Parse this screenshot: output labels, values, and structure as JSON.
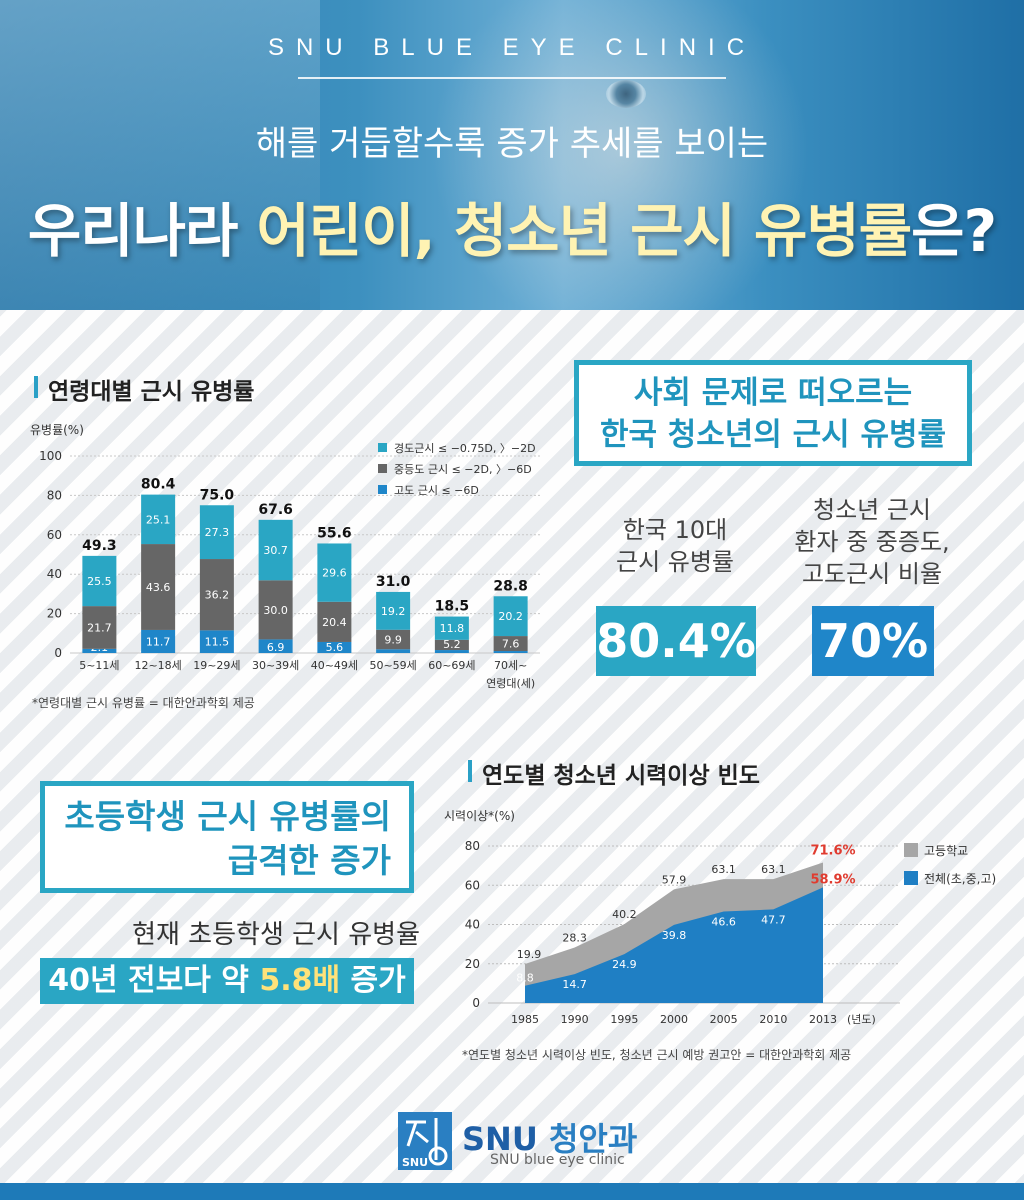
{
  "header": {
    "brand": "SNU BLUE EYE CLINIC",
    "subtitle": "해를 거듭할수록 증가 추세를 보이는",
    "title_part1": "우리나라 ",
    "title_highlight": "어린이, 청소년 근시 유병률",
    "title_part2": "은?"
  },
  "section1": {
    "heading": "연령대별 근시 유병률",
    "note": "*연령대별 근시 유병률 = 대한안과학회 제공"
  },
  "callout1": {
    "line1": "사회 문제로 떠오르는",
    "line2": "한국 청소년의 근시 유병률"
  },
  "stats": {
    "left_label_1": "한국 10대",
    "left_label_2": "근시 유병률",
    "left_value": "80.4%",
    "right_label_1": "청소년 근시",
    "right_label_2": "환자 중 중증도,",
    "right_label_3": "고도근시 비율",
    "right_value": "70%"
  },
  "section2": {
    "heading": "연도별 청소년 시력이상 빈도",
    "note": "*연도별 청소년 시력이상 빈도, 청소년 근시 예방 권고안 = 대한안과학회 제공"
  },
  "callout2": {
    "line1": "초등학생 근시 유병률의",
    "line2": "급격한 증가"
  },
  "growth": {
    "label": "현재 초등학생 근시 유병율",
    "banner_part1": "40년 전보다 약 ",
    "banner_highlight": "5.8배",
    "banner_part2": " 증가"
  },
  "logo": {
    "name_en": "SNU ",
    "name_kr": "청안과",
    "sub": "SNU blue eye clinic",
    "mark_text": "SNU"
  },
  "colors": {
    "teal": "#2aa6c4",
    "gray": "#666666",
    "blue": "#1f7fc4",
    "accent_red": "#e03b2f",
    "highlight_yellow": "#fff3b3"
  },
  "chart_data": [
    {
      "type": "bar",
      "stacked": true,
      "ylabel": "유병률(%)",
      "ylim": [
        0,
        100
      ],
      "yticks": [
        0,
        20,
        40,
        60,
        80,
        100
      ],
      "grid": true,
      "legend": "top-right",
      "categories": [
        "5~11세",
        "12~18세",
        "19~29세",
        "30~39세",
        "40~49세",
        "50~59세",
        "60~69세",
        "70세~"
      ],
      "xlabel_suffix": "연령대(세)",
      "totals": [
        "49.3",
        "80.4",
        "75.0",
        "67.6",
        "55.6",
        "31.0",
        "18.5",
        "28.8"
      ],
      "series": [
        {
          "name": "고도 근시 ≤ −6D",
          "color": "#1f86c9",
          "values": [
            2.1,
            11.7,
            11.5,
            6.9,
            5.6,
            1.9,
            1.5,
            1.0
          ],
          "labels": [
            "2.1",
            "11.7",
            "11.5",
            "6.9",
            "5.6",
            "",
            "",
            ""
          ]
        },
        {
          "name": "중등도 근시 ≤ −2D, 〉−6D",
          "color": "#666666",
          "values": [
            21.7,
            43.6,
            36.2,
            30.0,
            20.4,
            9.9,
            5.2,
            7.6
          ],
          "labels": [
            "21.7",
            "43.6",
            "36.2",
            "30.0",
            "20.4",
            "9.9",
            "5.2",
            "7.6"
          ]
        },
        {
          "name": "경도근시 ≤ −0.75D, 〉−2D",
          "color": "#2aa6c4",
          "values": [
            25.5,
            25.1,
            27.3,
            30.7,
            29.6,
            19.2,
            11.8,
            20.2
          ],
          "labels": [
            "25.5",
            "25.1",
            "27.3",
            "30.7",
            "29.6",
            "19.2",
            "11.8",
            "20.2"
          ]
        }
      ]
    },
    {
      "type": "area",
      "ylabel": "시력이상*(%)",
      "xlabel": "(년도)",
      "ylim": [
        0,
        80
      ],
      "yticks": [
        0,
        20,
        40,
        60,
        80
      ],
      "grid": true,
      "legend": "right",
      "x": [
        1985,
        1990,
        1995,
        2000,
        2005,
        2010,
        2013
      ],
      "series": [
        {
          "name": "고등학교",
          "color": "#a6a6a6",
          "values": [
            19.9,
            28.3,
            40.2,
            57.9,
            63.1,
            63.1,
            71.6
          ],
          "labels": [
            "19.9",
            "28.3",
            "40.2",
            "57.9",
            "63.1",
            "63.1",
            "71.6%"
          ]
        },
        {
          "name": "전체(초,중,고)",
          "color": "#1f7fc4",
          "values": [
            8.8,
            14.7,
            24.9,
            39.8,
            46.6,
            47.7,
            58.9
          ],
          "labels": [
            "8.8",
            "14.7",
            "24.9",
            "39.8",
            "46.6",
            "47.7",
            "58.9%"
          ]
        }
      ]
    }
  ]
}
